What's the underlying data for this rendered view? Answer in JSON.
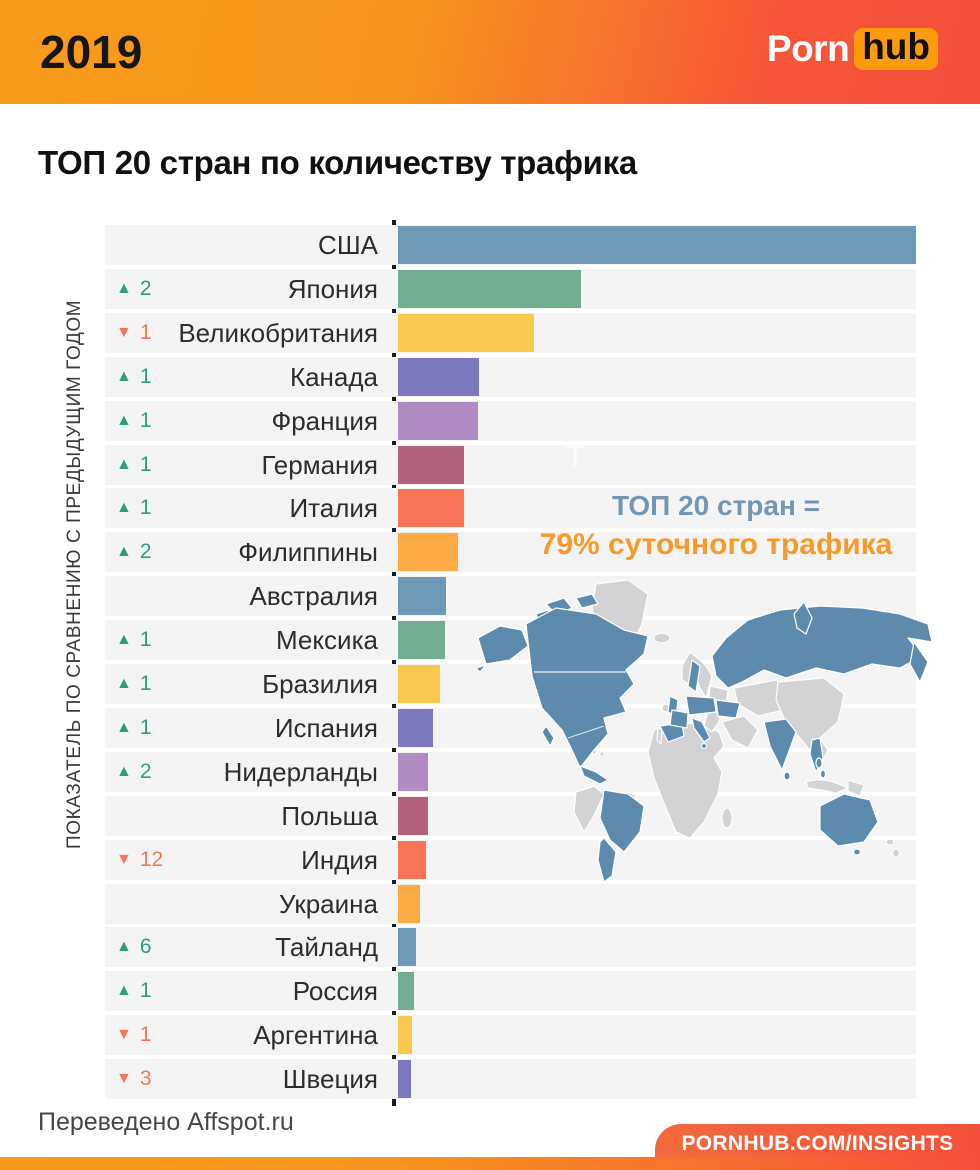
{
  "header": {
    "year": "2019",
    "logo_porn": "Porn",
    "logo_hub": "hub"
  },
  "title": "ТОП 20 стран по количеству трафика",
  "axis_label": "ПОКАЗАТЕЛЬ ПО СРАВНЕНИЮ С ПРЕДЫДУЩИМ ГОДОМ",
  "annotation": {
    "line1": "ТОП 20 стран =",
    "line2": "79% суточного трафика",
    "watermark": "T"
  },
  "footer": {
    "credit": "Переведено Affspot.ru",
    "site": "PORNHUB.COM/INSIGHTS"
  },
  "colors": {
    "arrow_up": "#2E9E77",
    "arrow_down": "#F4765A",
    "map_highlight": "#5C8BAD",
    "map_land": "#D3D3D6",
    "accent_blue": "#7595B1",
    "accent_orange": "#F8992B"
  },
  "chart_data": {
    "type": "bar",
    "orientation": "horizontal",
    "title": "ТОП 20 стран по количеству трафика",
    "ylabel": "ПОКАЗАТЕЛЬ ПО СРАВНЕНИЮ С ПРЕДЫДУЩИМ ГОДОМ",
    "note": "ТОП 20 стран = 79% суточного трафика",
    "value_note": "axis unlabeled; values are relative bar lengths in px measured from the chart",
    "palette": [
      "#6D99B9",
      "#73AE90",
      "#F9C84F",
      "#7B78BB",
      "#AF8BC6",
      "#B4617E",
      "#FA7557",
      "#FBAA44"
    ],
    "rows": [
      {
        "rank": 1,
        "country": "США",
        "change": null,
        "value": 518
      },
      {
        "rank": 2,
        "country": "Япония",
        "change": 2,
        "value": 183
      },
      {
        "rank": 3,
        "country": "Великобритания",
        "change": -1,
        "value": 136
      },
      {
        "rank": 4,
        "country": "Канада",
        "change": 1,
        "value": 81
      },
      {
        "rank": 5,
        "country": "Франция",
        "change": 1,
        "value": 80
      },
      {
        "rank": 6,
        "country": "Германия",
        "change": 1,
        "value": 66
      },
      {
        "rank": 7,
        "country": "Италия",
        "change": 1,
        "value": 66
      },
      {
        "rank": 8,
        "country": "Филиппины",
        "change": 2,
        "value": 60
      },
      {
        "rank": 9,
        "country": "Австралия",
        "change": null,
        "value": 48
      },
      {
        "rank": 10,
        "country": "Мексика",
        "change": 1,
        "value": 47
      },
      {
        "rank": 11,
        "country": "Бразилия",
        "change": 1,
        "value": 42
      },
      {
        "rank": 12,
        "country": "Испания",
        "change": 1,
        "value": 35
      },
      {
        "rank": 13,
        "country": "Нидерланды",
        "change": 2,
        "value": 30
      },
      {
        "rank": 14,
        "country": "Польша",
        "change": null,
        "value": 30
      },
      {
        "rank": 15,
        "country": "Индия",
        "change": -12,
        "value": 28
      },
      {
        "rank": 16,
        "country": "Украина",
        "change": null,
        "value": 22
      },
      {
        "rank": 17,
        "country": "Тайланд",
        "change": 6,
        "value": 18
      },
      {
        "rank": 18,
        "country": "Россия",
        "change": 1,
        "value": 16
      },
      {
        "rank": 19,
        "country": "Аргентина",
        "change": -1,
        "value": 14
      },
      {
        "rank": 20,
        "country": "Швеция",
        "change": -3,
        "value": 13
      }
    ]
  }
}
